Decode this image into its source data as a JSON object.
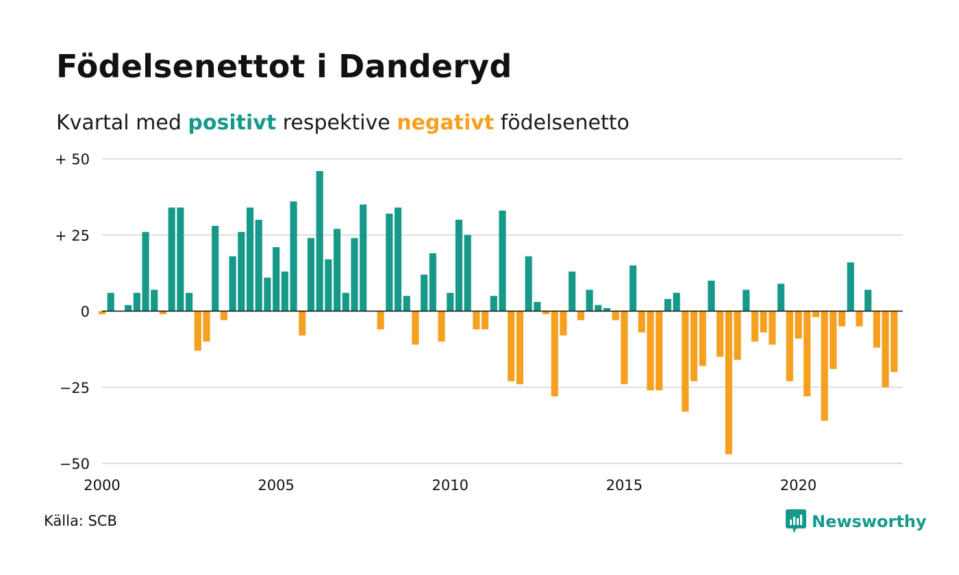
{
  "title": "Födelsenettot i Danderyd",
  "subtitle": {
    "prefix": "Kvartal med ",
    "positive": "positivt",
    "middle": " respektive ",
    "negative": "negativt",
    "suffix": " födelsenetto"
  },
  "source": "Källa: SCB",
  "brand": {
    "name": "Newsworthy",
    "icon": "newsworthy-logo-icon"
  },
  "colors": {
    "positive": "#17998a",
    "negative": "#f5a01f",
    "grid": "#dddddd",
    "zero": "#111111"
  },
  "chart_data": {
    "type": "bar",
    "title": "Födelsenettot i Danderyd",
    "subtitle": "Kvartal med positivt respektive negativt födelsenetto",
    "x_start": 2000,
    "x_step_years": 0.25,
    "xlim": [
      2000,
      2023
    ],
    "ylim": [
      -50,
      50
    ],
    "y_ticks": [
      {
        "value": 50,
        "label": "+ 50"
      },
      {
        "value": 25,
        "label": "+ 25"
      },
      {
        "value": 0,
        "label": "0"
      },
      {
        "value": -25,
        "label": "−25"
      },
      {
        "value": -50,
        "label": "−50"
      }
    ],
    "x_ticks": [
      {
        "value": 2000,
        "label": "2000"
      },
      {
        "value": 2005,
        "label": "2005"
      },
      {
        "value": 2010,
        "label": "2010"
      },
      {
        "value": 2015,
        "label": "2015"
      },
      {
        "value": 2020,
        "label": "2020"
      }
    ],
    "grid": true,
    "values": [
      -1,
      6,
      0,
      2,
      6,
      26,
      7,
      -1,
      34,
      34,
      6,
      -13,
      -10,
      28,
      -3,
      18,
      26,
      34,
      30,
      11,
      21,
      13,
      36,
      -8,
      24,
      46,
      17,
      27,
      6,
      24,
      35,
      0,
      -6,
      32,
      34,
      5,
      -11,
      12,
      19,
      -10,
      6,
      30,
      25,
      -6,
      -6,
      5,
      33,
      -23,
      -24,
      18,
      3,
      -1,
      -28,
      -8,
      13,
      -3,
      7,
      2,
      1,
      -3,
      -24,
      15,
      -7,
      -26,
      -26,
      4,
      6,
      -33,
      -23,
      -18,
      10,
      -15,
      -47,
      -16,
      7,
      -10,
      -7,
      -11,
      9,
      -23,
      -9,
      -28,
      -2,
      -36,
      -19,
      -5,
      16,
      -5,
      7,
      -12,
      -25,
      -20
    ]
  }
}
